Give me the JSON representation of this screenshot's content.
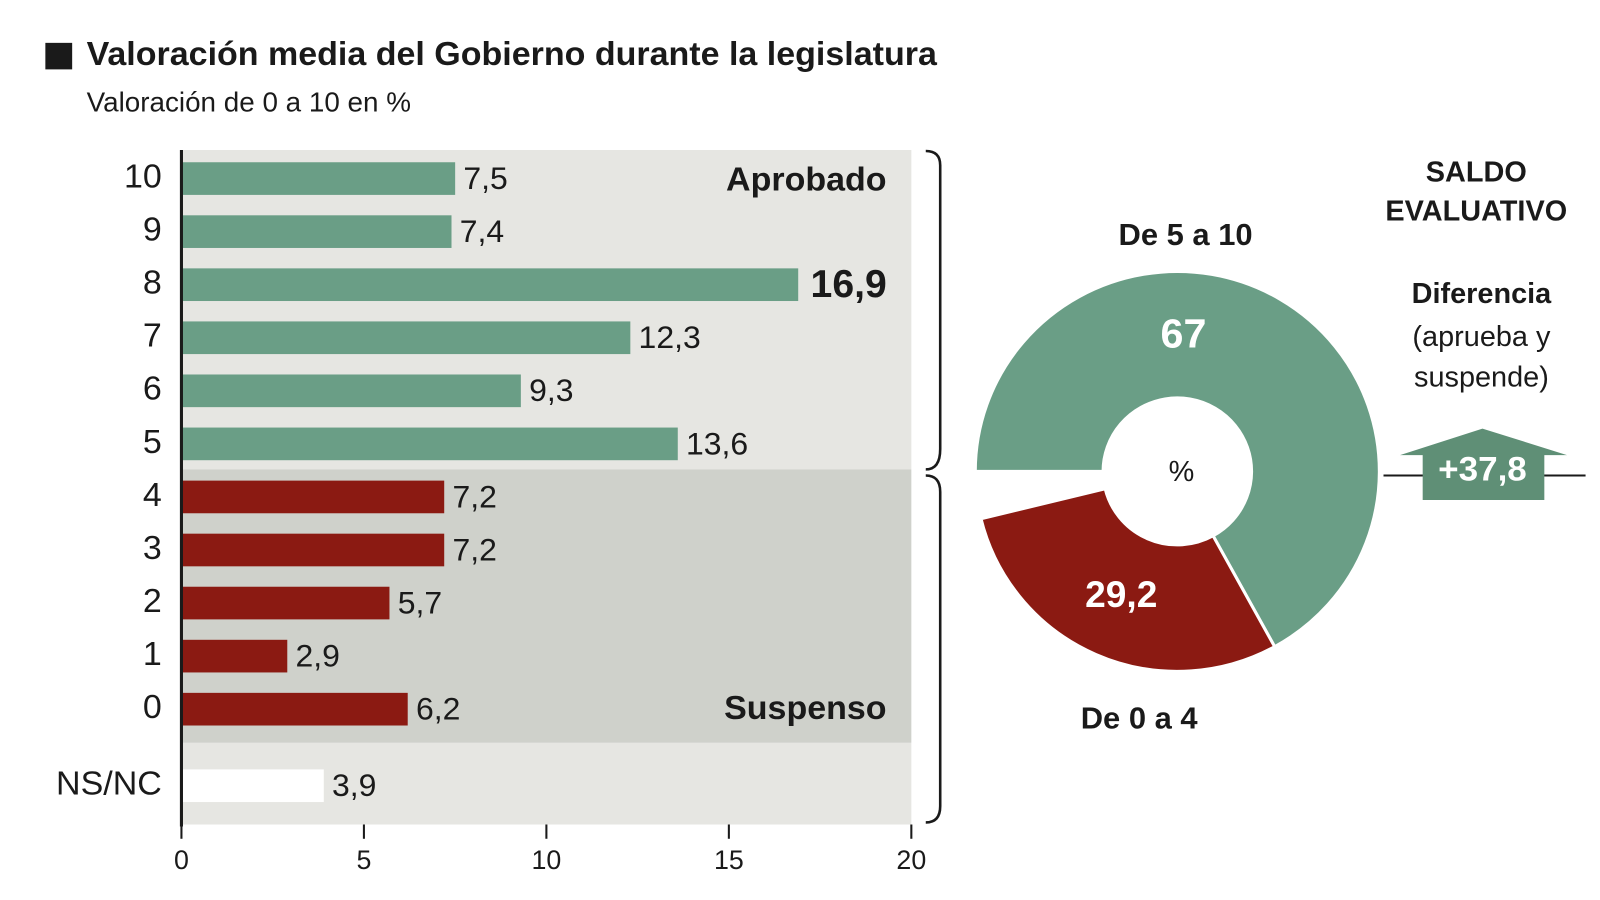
{
  "chart_data": [
    {
      "type": "hbar",
      "title": "Valoración media del Gobierno durante la legislatura",
      "subtitle": "Valoración de 0 a 10 en %",
      "categories": [
        "10",
        "9",
        "8",
        "7",
        "6",
        "5",
        "4",
        "3",
        "2",
        "1",
        "0",
        "NS/NC"
      ],
      "values": [
        7.5,
        7.4,
        16.9,
        12.3,
        9.3,
        13.6,
        7.2,
        7.2,
        5.7,
        2.9,
        6.2,
        3.9
      ],
      "value_labels": [
        "7,5",
        "7,4",
        "16,9",
        "12,3",
        "9,3",
        "13,6",
        "7,2",
        "7,2",
        "5,7",
        "2,9",
        "6,2",
        "3,9"
      ],
      "colors": [
        "#6a9e86",
        "#6a9e86",
        "#6a9e86",
        "#6a9e86",
        "#6a9e86",
        "#6a9e86",
        "#8b1a12",
        "#8b1a12",
        "#8b1a12",
        "#8b1a12",
        "#8b1a12",
        "#ffffff"
      ],
      "xlim": [
        0,
        20
      ],
      "xticks": [
        0,
        5,
        10,
        15,
        20
      ],
      "annotations": [
        "Aprobado",
        "Suspenso"
      ]
    },
    {
      "type": "donut",
      "categories": [
        "De 5 a 10",
        "De 0 a 4"
      ],
      "values": [
        67,
        29.2
      ],
      "value_labels": [
        "67",
        "29,2"
      ],
      "colors": [
        "#6a9e86",
        "#8b1a12"
      ],
      "center_label": "%",
      "side_title": "SALDO EVALUATIVO",
      "difference": {
        "label": "Diferencia",
        "note": "(aprueba y suspende)",
        "value": 37.8,
        "value_label": "+37,8",
        "color": "#5f8f76"
      }
    }
  ]
}
